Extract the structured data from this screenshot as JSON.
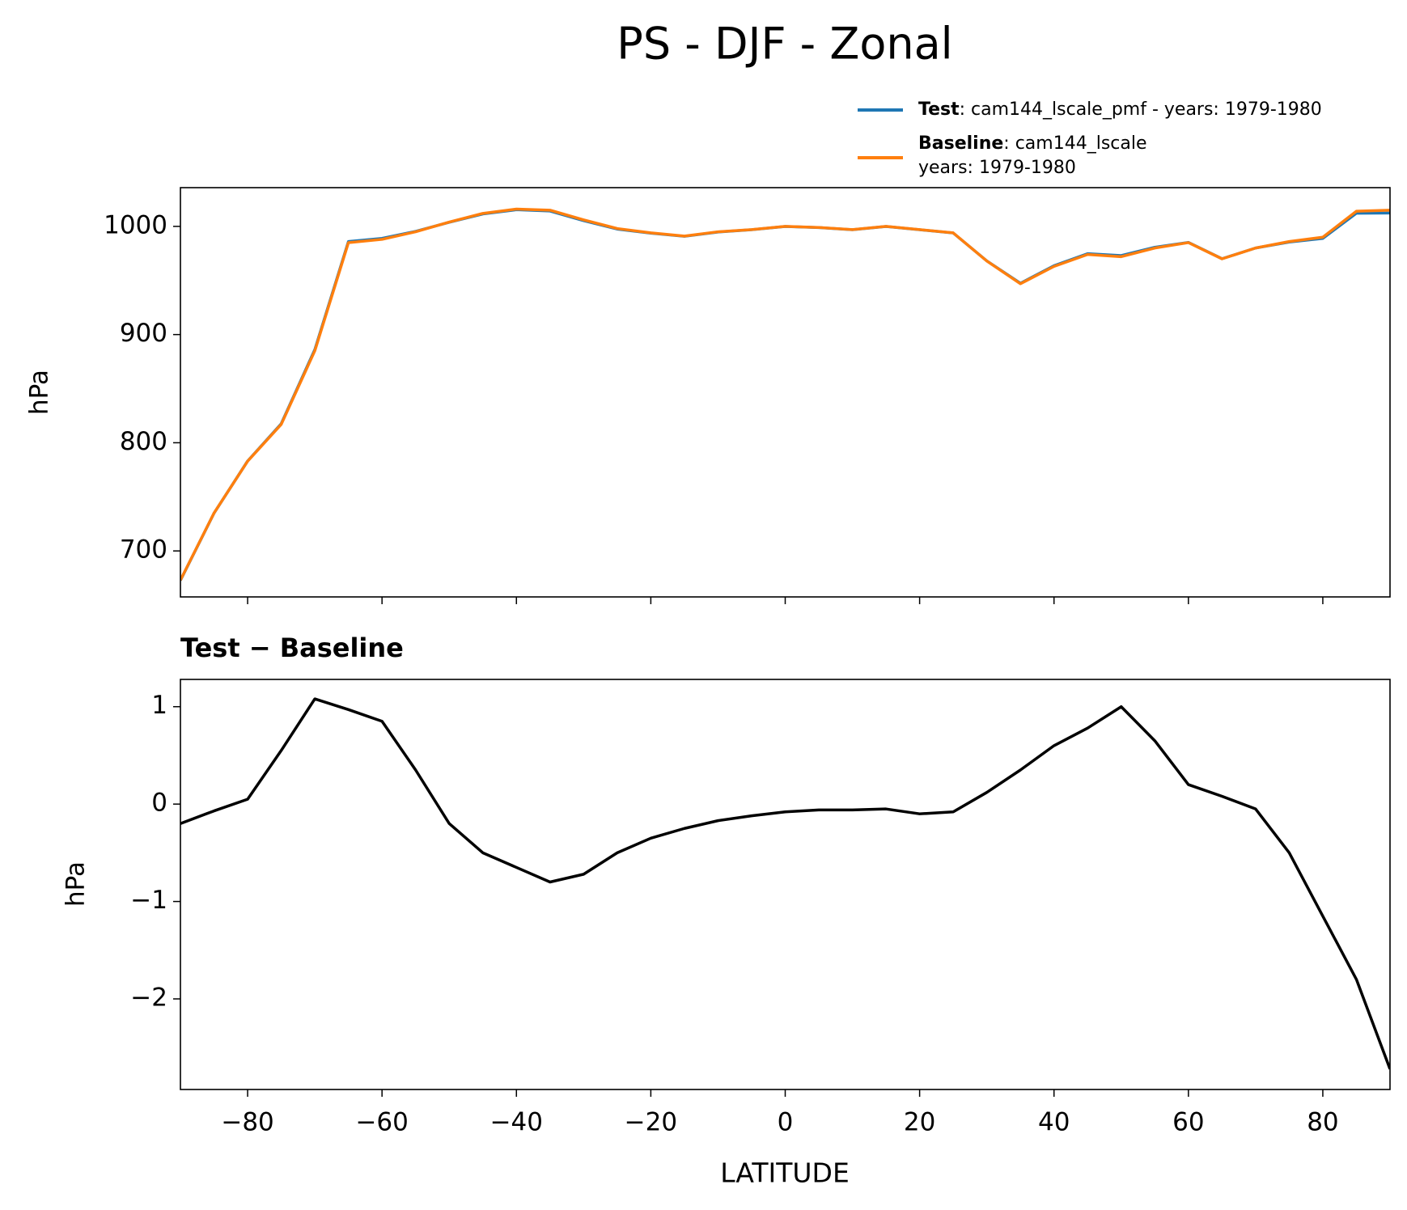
{
  "chart_data": [
    {
      "type": "line",
      "title": "PS - DJF - Zonal",
      "ylabel": "hPa",
      "x": [
        -90,
        -85,
        -80,
        -75,
        -70,
        -65,
        -60,
        -55,
        -50,
        -45,
        -40,
        -35,
        -30,
        -25,
        -20,
        -15,
        -10,
        -5,
        0,
        5,
        10,
        15,
        20,
        25,
        30,
        35,
        40,
        45,
        50,
        55,
        60,
        65,
        70,
        75,
        80,
        85,
        90
      ],
      "series": [
        {
          "name": "Test",
          "label": [
            ": cam144_lscale_pmf - years: 1979-1980"
          ],
          "color": "#1f77b4",
          "values": [
            672.8,
            734.9,
            783.1,
            817.6,
            886.1,
            986.0,
            988.9,
            995.4,
            1003.8,
            1011.5,
            1015.4,
            1014.2,
            1005.3,
            997.5,
            993.7,
            990.8,
            994.8,
            996.9,
            999.9,
            998.9,
            996.9,
            999.9,
            996.9,
            993.9,
            968.1,
            947.4,
            963.6,
            974.8,
            973.0,
            980.7,
            985.2,
            970.1,
            980.0,
            985.5,
            988.9,
            1012.2,
            1012.3
          ]
        },
        {
          "name": "Baseline",
          "label": [
            ": cam144_lscale",
            "years: 1979-1980"
          ],
          "color": "#ff7f0e",
          "values": [
            673,
            735,
            783,
            817,
            885,
            985,
            988,
            995,
            1004,
            1012,
            1016,
            1015,
            1006,
            998,
            994,
            991,
            995,
            997,
            1000,
            999,
            997,
            1000,
            997,
            994,
            968,
            947,
            963,
            974,
            972,
            980,
            985,
            970,
            980,
            986,
            990,
            1014,
            1015
          ]
        }
      ],
      "xlim": [
        -90,
        90
      ],
      "xticks": [
        -80,
        -60,
        -40,
        -20,
        0,
        20,
        40,
        60,
        80
      ],
      "ylim": [
        657.5,
        1035.8
      ],
      "yticks": [
        700,
        800,
        900,
        1000
      ]
    },
    {
      "type": "line",
      "title": "Test − Baseline",
      "ylabel": "hPa",
      "xlabel": "LATITUDE",
      "x": [
        -90,
        -85,
        -80,
        -75,
        -70,
        -65,
        -60,
        -55,
        -50,
        -45,
        -40,
        -35,
        -30,
        -25,
        -20,
        -15,
        -10,
        -5,
        0,
        5,
        10,
        15,
        20,
        25,
        30,
        35,
        40,
        45,
        50,
        55,
        60,
        65,
        70,
        75,
        80,
        85,
        90
      ],
      "series": [
        {
          "color": "#000000",
          "values": [
            -0.2,
            -0.07,
            0.05,
            0.55,
            1.08,
            0.97,
            0.85,
            0.35,
            -0.2,
            -0.5,
            -0.65,
            -0.8,
            -0.72,
            -0.5,
            -0.35,
            -0.25,
            -0.17,
            -0.12,
            -0.08,
            -0.06,
            -0.06,
            -0.05,
            -0.1,
            -0.08,
            0.12,
            0.35,
            0.6,
            0.78,
            1.0,
            0.65,
            0.2,
            0.08,
            -0.05,
            -0.5,
            -1.15,
            -1.8,
            -2.72
          ]
        }
      ],
      "xlim": [
        -90,
        90
      ],
      "xticks": [
        {
          "value": -80,
          "label": "−80"
        },
        {
          "value": -60,
          "label": "−60"
        },
        {
          "value": -40,
          "label": "−40"
        },
        {
          "value": -20,
          "label": "−20"
        },
        0,
        20,
        40,
        60,
        80
      ],
      "ylim": [
        -2.93,
        1.28
      ],
      "yticks": [
        {
          "value": -2,
          "label": "−2"
        },
        {
          "value": -1,
          "label": "−1"
        },
        0,
        1
      ]
    }
  ]
}
